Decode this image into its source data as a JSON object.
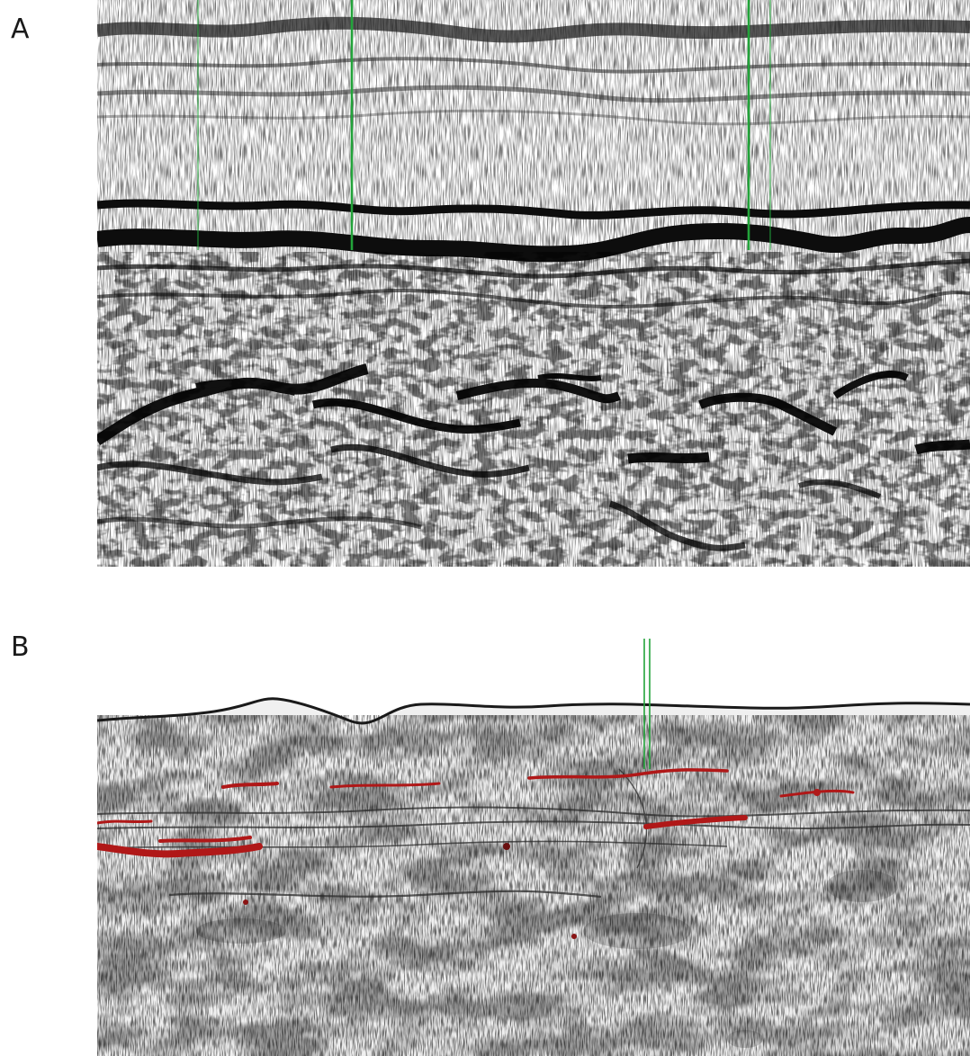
{
  "panels": [
    {
      "label": "A",
      "kind": "grayscale radargram with strong wavy horizontal reflectors"
    },
    {
      "label": "B",
      "kind": "radargram with red-highlighted reflectors"
    }
  ],
  "colors": {
    "reflector_dark": "#111111",
    "marker_green": "#22a33a",
    "highlight_red": "#b01818",
    "background": "#ffffff"
  }
}
